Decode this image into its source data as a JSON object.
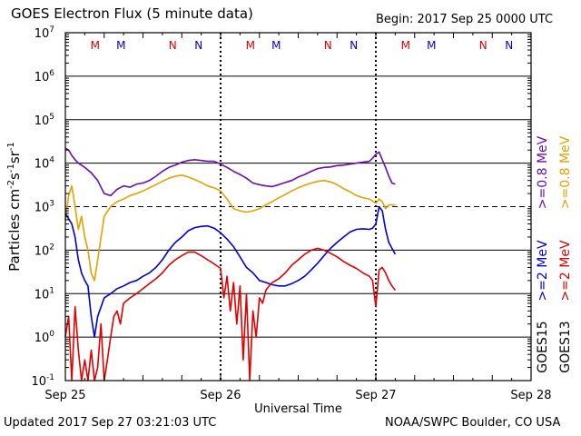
{
  "header": {
    "title": "GOES Electron Flux (5 minute data)",
    "begin": "Begin: 2017 Sep 25 0000 UTC"
  },
  "footer": {
    "updated": "Updated 2017 Sep 27 03:21:03 UTC",
    "credit": "NOAA/SWPC Boulder, CO USA"
  },
  "chart_data": {
    "type": "line",
    "xlabel": "Universal Time",
    "ylabel_main": "Particles cm",
    "ylabel_sup1": "-2",
    "ylabel_mid1": "s",
    "ylabel_sup2": "-1",
    "ylabel_mid2": "sr",
    "ylabel_sup3": "-1",
    "y_scale": "log",
    "ylim": [
      0.1,
      10000000
    ],
    "y_ticks": [
      {
        "base": "10",
        "exp": "7",
        "value": 10000000
      },
      {
        "base": "10",
        "exp": "6",
        "value": 1000000
      },
      {
        "base": "10",
        "exp": "5",
        "value": 100000
      },
      {
        "base": "10",
        "exp": "4",
        "value": 10000
      },
      {
        "base": "10",
        "exp": "3",
        "value": 1000
      },
      {
        "base": "10",
        "exp": "2",
        "value": 100
      },
      {
        "base": "10",
        "exp": "1",
        "value": 10
      },
      {
        "base": "10",
        "exp": "0",
        "value": 1
      },
      {
        "base": "10",
        "exp": "-1",
        "value": 0.1
      }
    ],
    "xlim_hours": [
      0,
      72
    ],
    "x_ticks": [
      {
        "label": "Sep 25",
        "hour": 0
      },
      {
        "label": "Sep 26",
        "hour": 24
      },
      {
        "label": "Sep 27",
        "hour": 48
      },
      {
        "label": "Sep 28",
        "hour": 72
      }
    ],
    "dashed_threshold": 1000,
    "markers": [
      {
        "label": "M",
        "hour": 4.6,
        "color": "#e00000"
      },
      {
        "label": "M",
        "hour": 8.6,
        "color": "#0000d0"
      },
      {
        "label": "N",
        "hour": 16.6,
        "color": "#e00000"
      },
      {
        "label": "N",
        "hour": 20.6,
        "color": "#0000d0"
      },
      {
        "label": "M",
        "hour": 28.6,
        "color": "#e00000"
      },
      {
        "label": "M",
        "hour": 32.6,
        "color": "#0000d0"
      },
      {
        "label": "N",
        "hour": 40.6,
        "color": "#e00000"
      },
      {
        "label": "N",
        "hour": 44.6,
        "color": "#0000d0"
      },
      {
        "label": "M",
        "hour": 52.6,
        "color": "#e00000"
      },
      {
        "label": "M",
        "hour": 56.6,
        "color": "#0000d0"
      },
      {
        "label": "N",
        "hour": 64.6,
        "color": "#e00000"
      },
      {
        "label": "N",
        "hour": 68.6,
        "color": "#0000d0"
      }
    ],
    "legend": [
      {
        "text": ">=0.8 MeV",
        "color": "#6a0dad"
      },
      {
        "text": ">=2 MeV",
        "color": "#0000d0"
      },
      {
        "text": ">=0.8 MeV",
        "color": "#e8a000"
      },
      {
        "text": ">=2 MeV",
        "color": "#e00000"
      },
      {
        "text": "GOES15",
        "color": "#000000"
      },
      {
        "text": "GOES13",
        "color": "#000000"
      }
    ],
    "series": [
      {
        "name": "GOES15 >=0.8 MeV",
        "color": "#6a0dad",
        "x": [
          0,
          0.5,
          1,
          1.5,
          2,
          3,
          4,
          5,
          6,
          7,
          8,
          9,
          10,
          11,
          12,
          13,
          14,
          15,
          16,
          17,
          18,
          19,
          20,
          21,
          22,
          23,
          24,
          25,
          26,
          27,
          28,
          29,
          30,
          31,
          32,
          33,
          34,
          35,
          36,
          37,
          38,
          39,
          40,
          41,
          42,
          43,
          44,
          45,
          46,
          47,
          47.5,
          48,
          48.5,
          49,
          49.5,
          50,
          50.5,
          51
        ],
        "y": [
          22000,
          20000,
          15000,
          12000,
          10000,
          8000,
          6000,
          4000,
          2000,
          1800,
          2500,
          3000,
          2800,
          3300,
          3500,
          4000,
          5000,
          6500,
          8000,
          9000,
          10500,
          11500,
          12000,
          11500,
          11000,
          11000,
          9500,
          8000,
          6500,
          5500,
          4500,
          3500,
          3200,
          3000,
          2900,
          3200,
          3600,
          4000,
          4800,
          5500,
          6500,
          7500,
          8000,
          8200,
          8800,
          9000,
          9500,
          10000,
          10500,
          11000,
          13000,
          16000,
          18000,
          12000,
          8000,
          5000,
          3500,
          3300
        ]
      },
      {
        "name": "GOES13 >=0.8 MeV",
        "color": "#e8a000",
        "x": [
          0,
          0.5,
          1,
          1.5,
          2,
          2.5,
          3,
          3.5,
          4,
          4.5,
          5,
          6,
          7,
          8,
          9,
          10,
          11,
          12,
          13,
          14,
          15,
          16,
          17,
          18,
          19,
          20,
          21,
          22,
          23,
          24,
          25,
          26,
          27,
          28,
          29,
          30,
          31,
          32,
          33,
          34,
          35,
          36,
          37,
          38,
          39,
          40,
          41,
          42,
          43,
          44,
          45,
          46,
          47,
          48,
          48.5,
          49,
          49.5,
          50,
          51
        ],
        "y": [
          500,
          1800,
          3000,
          1000,
          300,
          600,
          200,
          100,
          30,
          20,
          60,
          600,
          1000,
          1300,
          1500,
          1800,
          2000,
          2300,
          2700,
          3200,
          3800,
          4500,
          5000,
          5300,
          4800,
          4200,
          3600,
          3000,
          2700,
          2300,
          1500,
          900,
          800,
          750,
          800,
          900,
          1100,
          1300,
          1600,
          1900,
          2300,
          2700,
          3100,
          3500,
          3800,
          4000,
          3700,
          3200,
          2600,
          2200,
          1800,
          1600,
          1500,
          1200,
          1500,
          1300,
          900,
          1100,
          1100
        ]
      },
      {
        "name": "GOES15 >=2 MeV",
        "color": "#0000d0",
        "x": [
          0,
          1,
          1.5,
          2,
          2.5,
          3,
          3.5,
          4,
          4.5,
          5,
          6,
          7,
          8,
          9,
          10,
          11,
          12,
          13,
          14,
          15,
          16,
          17,
          18,
          19,
          20,
          21,
          22,
          23,
          24,
          25,
          26,
          27,
          28,
          29,
          30,
          31,
          32,
          33,
          34,
          35,
          36,
          37,
          38,
          39,
          40,
          41,
          42,
          43,
          44,
          45,
          46,
          47,
          47.5,
          48,
          48.5,
          49,
          49.5,
          50,
          51
        ],
        "y": [
          700,
          400,
          200,
          60,
          30,
          20,
          15,
          3,
          1,
          3,
          8,
          10,
          13,
          15,
          18,
          20,
          25,
          30,
          40,
          60,
          100,
          150,
          200,
          280,
          330,
          350,
          360,
          320,
          250,
          180,
          120,
          70,
          40,
          30,
          20,
          18,
          16,
          15,
          15,
          17,
          20,
          25,
          35,
          50,
          75,
          110,
          150,
          200,
          260,
          300,
          310,
          300,
          320,
          400,
          1000,
          800,
          300,
          150,
          80
        ]
      },
      {
        "name": "GOES13 >=2 MeV",
        "color": "#e00000",
        "x": [
          0,
          0.5,
          1,
          1.5,
          2,
          2.5,
          3,
          3.5,
          4,
          4.5,
          5,
          5.5,
          6,
          6.5,
          7,
          7.5,
          8,
          8.5,
          9,
          10,
          11,
          12,
          13,
          14,
          15,
          16,
          17,
          18,
          19,
          20,
          21,
          22,
          23,
          24,
          24.5,
          25,
          25.5,
          26,
          26.5,
          27,
          27.5,
          28,
          28.5,
          29,
          29.5,
          30,
          30.5,
          31,
          31.5,
          32,
          33,
          34,
          35,
          36,
          37,
          38,
          39,
          40,
          41,
          42,
          43,
          44,
          45,
          46,
          47,
          47.5,
          48,
          48.5,
          49,
          49.5,
          50,
          50.5,
          51
        ],
        "y": [
          1,
          3,
          0.1,
          5,
          0.5,
          0.1,
          0.3,
          0.1,
          0.5,
          0.1,
          0.2,
          2,
          0.1,
          0.3,
          1,
          3,
          4,
          2,
          6,
          8,
          10,
          13,
          17,
          22,
          30,
          45,
          60,
          75,
          90,
          90,
          75,
          60,
          48,
          38,
          8,
          25,
          4,
          18,
          2,
          15,
          0.3,
          10,
          0.1,
          4,
          1,
          8,
          6,
          12,
          15,
          18,
          22,
          30,
          45,
          60,
          80,
          100,
          110,
          100,
          85,
          70,
          55,
          45,
          38,
          30,
          25,
          20,
          5,
          35,
          40,
          30,
          20,
          15,
          12
        ]
      }
    ]
  }
}
